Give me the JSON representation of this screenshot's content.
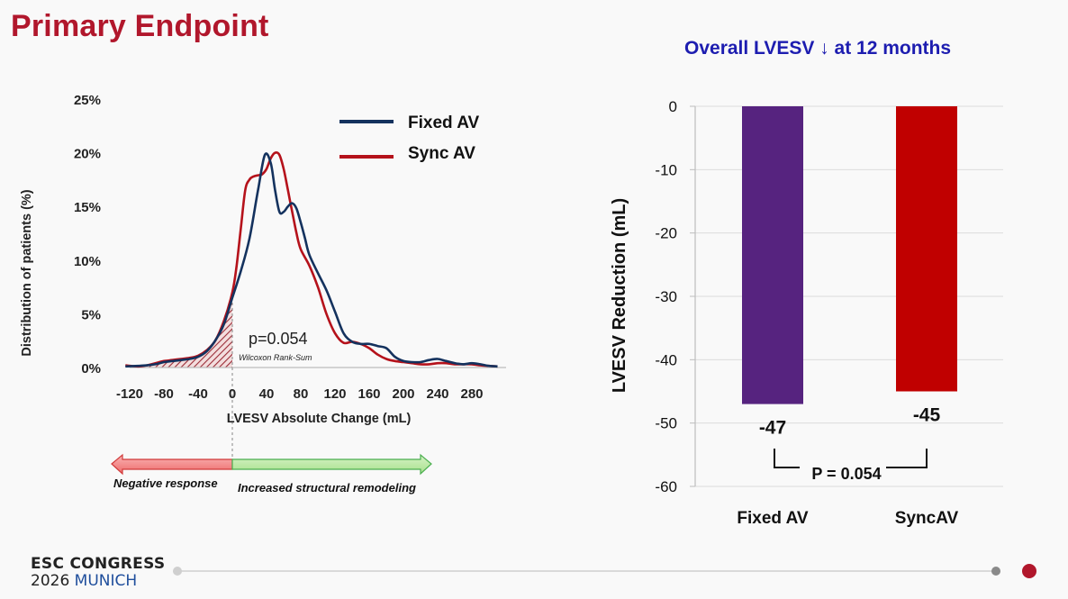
{
  "slide": {
    "title": "Primary Endpoint",
    "right_title": "Overall LVESV ↓ at 12 months",
    "footer": {
      "line1": "ESC CONGRESS",
      "year": "2026",
      "city": "MUNICH"
    },
    "colors": {
      "title": "#b1172c",
      "right_title": "#1d1db0",
      "fixed": "#14325e",
      "sync": "#b5121b",
      "bar_fixed": "#56237f",
      "bar_sync": "#c00000"
    }
  },
  "chart_data": [
    {
      "type": "line",
      "xlabel": "LVESV Absolute Change (mL)",
      "ylabel": "Distribution of patients (%)",
      "x_ticks": [
        -120,
        -80,
        -40,
        0,
        40,
        80,
        120,
        160,
        200,
        240,
        280
      ],
      "y_ticks": [
        "0%",
        "5%",
        "10%",
        "15%",
        "20%",
        "25%"
      ],
      "xlim": [
        -130,
        325
      ],
      "ylim": [
        0,
        25
      ],
      "legend": "top-right",
      "annotation": "p=0.054",
      "annotation_sub": "Wilcoxon Rank-Sum",
      "series": [
        {
          "name": "Fixed AV",
          "x": [
            -125,
            -110,
            -100,
            -90,
            -80,
            -70,
            -60,
            -50,
            -40,
            -30,
            -20,
            -10,
            0,
            10,
            20,
            30,
            38,
            45,
            50,
            55,
            60,
            65,
            70,
            75,
            80,
            85,
            90,
            100,
            110,
            120,
            130,
            140,
            150,
            160,
            170,
            180,
            190,
            200,
            210,
            220,
            230,
            240,
            250,
            260,
            270,
            280,
            290,
            300,
            310
          ],
          "y": [
            0.1,
            0.15,
            0.2,
            0.3,
            0.5,
            0.6,
            0.7,
            0.8,
            1.0,
            1.5,
            2.5,
            4.0,
            6.5,
            9.0,
            12.0,
            16.5,
            19.8,
            19.0,
            16.5,
            14.5,
            14.5,
            15.0,
            15.3,
            14.8,
            13.5,
            12.0,
            10.5,
            8.8,
            7.2,
            5.2,
            3.2,
            2.4,
            2.2,
            2.2,
            2.0,
            1.8,
            1.0,
            0.6,
            0.5,
            0.5,
            0.7,
            0.8,
            0.6,
            0.4,
            0.3,
            0.4,
            0.3,
            0.15,
            0.1
          ]
        },
        {
          "name": "Sync AV",
          "x": [
            -125,
            -110,
            -100,
            -90,
            -80,
            -70,
            -60,
            -50,
            -40,
            -30,
            -20,
            -10,
            0,
            5,
            10,
            15,
            20,
            25,
            30,
            35,
            40,
            45,
            50,
            55,
            60,
            65,
            70,
            75,
            80,
            90,
            100,
            110,
            120,
            130,
            140,
            150,
            160,
            170,
            180,
            190,
            200,
            210,
            220,
            230,
            240,
            250,
            260,
            270,
            280,
            290,
            300,
            310
          ],
          "y": [
            0.2,
            0.1,
            0.2,
            0.4,
            0.6,
            0.7,
            0.8,
            0.9,
            1.1,
            1.6,
            2.5,
            4.3,
            7.0,
            9.5,
            13.0,
            16.5,
            17.5,
            17.8,
            17.9,
            18.0,
            18.5,
            19.5,
            20.0,
            19.8,
            18.5,
            16.5,
            14.5,
            12.5,
            11.0,
            9.5,
            7.5,
            5.0,
            3.2,
            2.3,
            2.4,
            2.2,
            1.8,
            1.2,
            0.8,
            0.6,
            0.5,
            0.4,
            0.3,
            0.3,
            0.4,
            0.4,
            0.3,
            0.3,
            0.3,
            0.2,
            0.15,
            0.1
          ]
        }
      ],
      "response_arrows": {
        "negative": "Negative response",
        "positive": "Increased structural remodeling"
      }
    },
    {
      "type": "bar",
      "categories": [
        "Fixed AV",
        "SyncAV"
      ],
      "values": [
        -47,
        -45
      ],
      "data_labels": [
        "-47",
        "-45"
      ],
      "ylabel": "LVESV Reduction (mL)",
      "y_ticks": [
        0,
        -10,
        -20,
        -30,
        -40,
        -50,
        -60
      ],
      "ylim": [
        -60,
        0
      ],
      "annotation": "P = 0.054"
    }
  ]
}
